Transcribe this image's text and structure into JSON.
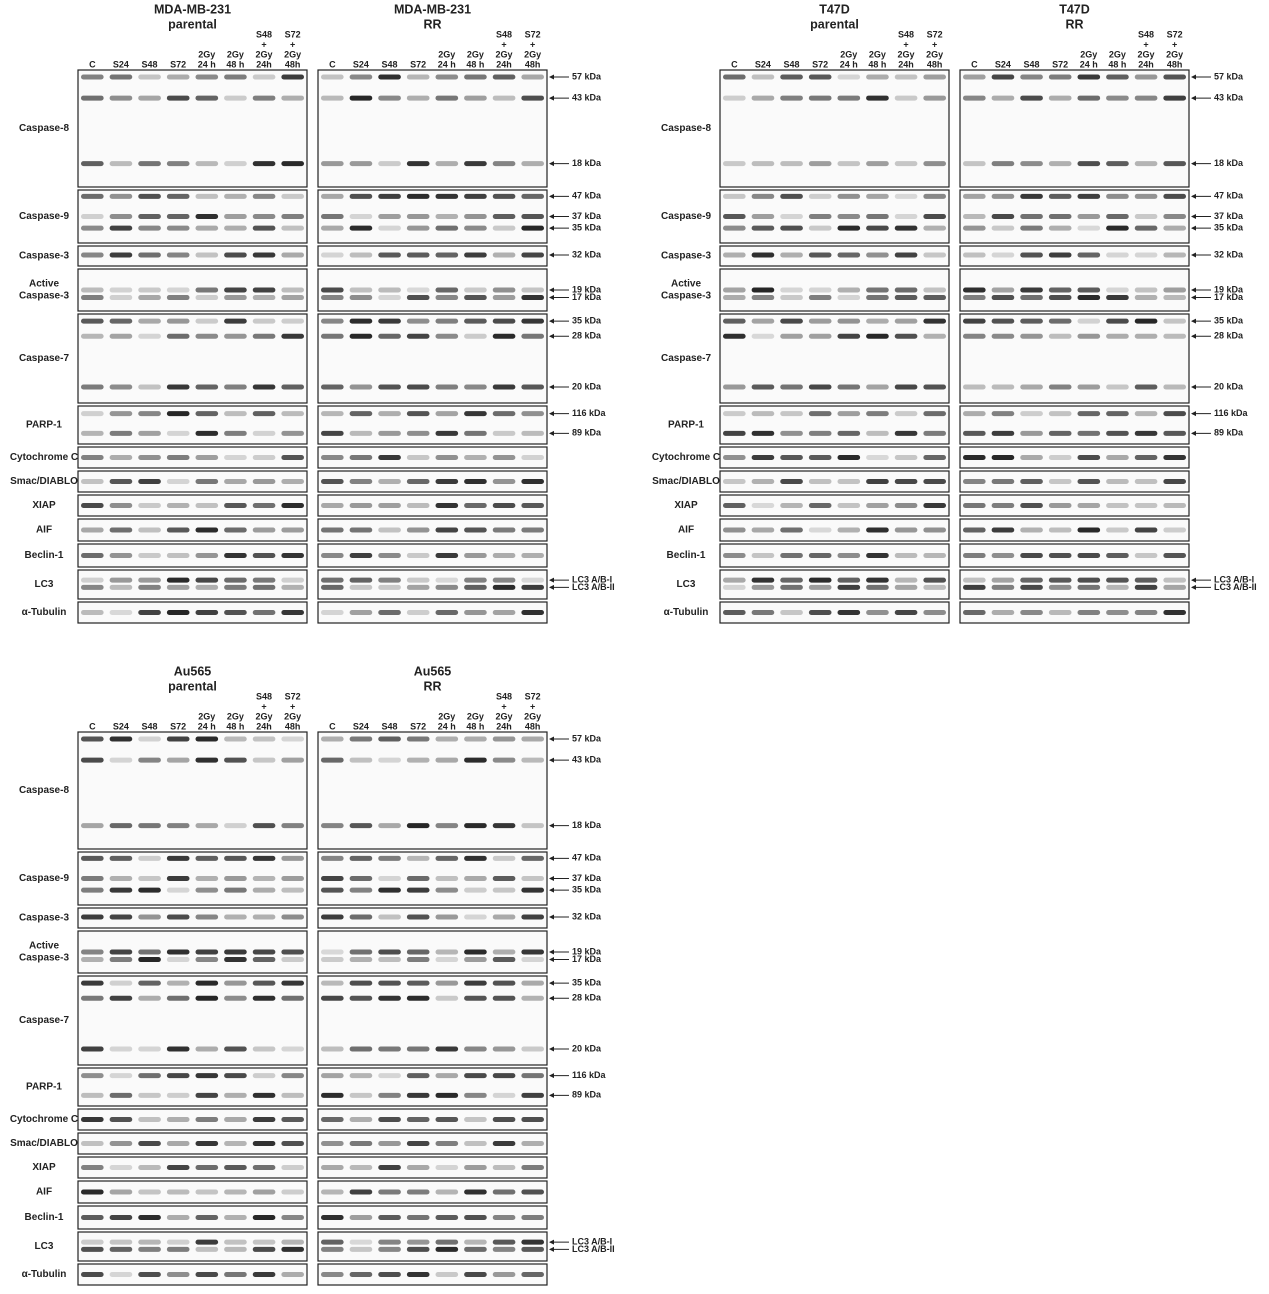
{
  "blocks": [
    {
      "panels": [
        {
          "title": [
            "MDA-MB-231",
            "parental"
          ],
          "lanes": [
            [
              "C"
            ],
            [
              "S24"
            ],
            [
              "S48"
            ],
            [
              "S72"
            ],
            [
              "2Gy",
              "24 h"
            ],
            [
              "2Gy",
              "48 h"
            ],
            [
              "S48",
              "+",
              "2Gy",
              "24h"
            ],
            [
              "S72",
              "+",
              "2Gy",
              "48h"
            ]
          ]
        },
        {
          "title": [
            "MDA-MB-231",
            "RR"
          ],
          "lanes": [
            [
              "C"
            ],
            [
              "S24"
            ],
            [
              "S48"
            ],
            [
              "S72"
            ],
            [
              "2Gy",
              "24 h"
            ],
            [
              "2Gy",
              "48 h"
            ],
            [
              "S48",
              "+",
              "2Gy",
              "24h"
            ],
            [
              "S72",
              "+",
              "2Gy",
              "48h"
            ]
          ]
        }
      ],
      "rows": [
        {
          "label": [
            "Caspase-8"
          ],
          "markers": [
            "57 kDa",
            "43 kDa",
            "18 kDa"
          ]
        },
        {
          "label": [
            "Caspase-9"
          ],
          "markers": [
            "47 kDa",
            "37 kDa",
            "35 kDa"
          ]
        },
        {
          "label": [
            "Caspase-3"
          ],
          "markers": [
            "32 kDa"
          ]
        },
        {
          "label": [
            "Active",
            "Caspase-3"
          ],
          "markers": [
            "19 kDa",
            "17 kDa"
          ]
        },
        {
          "label": [
            "Caspase-7"
          ],
          "markers": [
            "35 kDa",
            "28 kDa",
            "20 kDa"
          ]
        },
        {
          "label": [
            "PARP-1"
          ],
          "markers": [
            "116 kDa",
            "89 kDa"
          ]
        },
        {
          "label": [
            "Cytochrome C"
          ],
          "markers": []
        },
        {
          "label": [
            "Smac/DIABLO"
          ],
          "markers": []
        },
        {
          "label": [
            "XIAP"
          ],
          "markers": []
        },
        {
          "label": [
            "AIF"
          ],
          "markers": []
        },
        {
          "label": [
            "Beclin-1"
          ],
          "markers": []
        },
        {
          "label": [
            "LC3"
          ],
          "markers": [
            "LC3 A/B-I",
            "LC3 A/B-II"
          ]
        },
        {
          "label": [
            "α-Tubulin"
          ],
          "markers": []
        }
      ]
    },
    {
      "panels": [
        {
          "title": [
            "T47D",
            "parental"
          ],
          "lanes": [
            [
              "C"
            ],
            [
              "S24"
            ],
            [
              "S48"
            ],
            [
              "S72"
            ],
            [
              "2Gy",
              "24 h"
            ],
            [
              "2Gy",
              "48 h"
            ],
            [
              "S48",
              "+",
              "2Gy",
              "24h"
            ],
            [
              "S72",
              "+",
              "2Gy",
              "48h"
            ]
          ]
        },
        {
          "title": [
            "T47D",
            "RR"
          ],
          "lanes": [
            [
              "C"
            ],
            [
              "S24"
            ],
            [
              "S48"
            ],
            [
              "S72"
            ],
            [
              "2Gy",
              "24 h"
            ],
            [
              "2Gy",
              "48 h"
            ],
            [
              "S48",
              "+",
              "2Gy",
              "24h"
            ],
            [
              "S72",
              "+",
              "2Gy",
              "48h"
            ]
          ]
        }
      ],
      "rows": [
        {
          "label": [
            "Caspase-8"
          ],
          "markers": [
            "57 kDa",
            "43 kDa",
            "18 kDa"
          ]
        },
        {
          "label": [
            "Caspase-9"
          ],
          "markers": [
            "47 kDa",
            "37 kDa",
            "35 kDa"
          ]
        },
        {
          "label": [
            "Caspase-3"
          ],
          "markers": [
            "32 kDa"
          ]
        },
        {
          "label": [
            "Active",
            "Caspase-3"
          ],
          "markers": [
            "19 kDa",
            "17 kDa"
          ]
        },
        {
          "label": [
            "Caspase-7"
          ],
          "markers": [
            "35 kDa",
            "28 kDa",
            "20 kDa"
          ]
        },
        {
          "label": [
            "PARP-1"
          ],
          "markers": [
            "116 kDa",
            "89 kDa"
          ]
        },
        {
          "label": [
            "Cytochrome C"
          ],
          "markers": []
        },
        {
          "label": [
            "Smac/DIABLO"
          ],
          "markers": []
        },
        {
          "label": [
            "XIAP"
          ],
          "markers": []
        },
        {
          "label": [
            "AIF"
          ],
          "markers": []
        },
        {
          "label": [
            "Beclin-1"
          ],
          "markers": []
        },
        {
          "label": [
            "LC3"
          ],
          "markers": [
            "LC3 A/B-I",
            "LC3 A/B-II"
          ]
        },
        {
          "label": [
            "α-Tubulin"
          ],
          "markers": []
        }
      ]
    },
    {
      "panels": [
        {
          "title": [
            "Au565",
            "parental"
          ],
          "lanes": [
            [
              "C"
            ],
            [
              "S24"
            ],
            [
              "S48"
            ],
            [
              "S72"
            ],
            [
              "2Gy",
              "24 h"
            ],
            [
              "2Gy",
              "48 h"
            ],
            [
              "S48",
              "+",
              "2Gy",
              "24h"
            ],
            [
              "S72",
              "+",
              "2Gy",
              "48h"
            ]
          ]
        },
        {
          "title": [
            "Au565",
            "RR"
          ],
          "lanes": [
            [
              "C"
            ],
            [
              "S24"
            ],
            [
              "S48"
            ],
            [
              "S72"
            ],
            [
              "2Gy",
              "24 h"
            ],
            [
              "2Gy",
              "48 h"
            ],
            [
              "S48",
              "+",
              "2Gy",
              "24h"
            ],
            [
              "S72",
              "+",
              "2Gy",
              "48h"
            ]
          ]
        }
      ],
      "rows": [
        {
          "label": [
            "Caspase-8"
          ],
          "markers": [
            "57 kDa",
            "43 kDa",
            "18 kDa"
          ]
        },
        {
          "label": [
            "Caspase-9"
          ],
          "markers": [
            "47 kDa",
            "37 kDa",
            "35 kDa"
          ]
        },
        {
          "label": [
            "Caspase-3"
          ],
          "markers": [
            "32 kDa"
          ]
        },
        {
          "label": [
            "Active",
            "Caspase-3"
          ],
          "markers": [
            "19 kDa",
            "17 kDa"
          ]
        },
        {
          "label": [
            "Caspase-7"
          ],
          "markers": [
            "35 kDa",
            "28 kDa",
            "20 kDa"
          ]
        },
        {
          "label": [
            "PARP-1"
          ],
          "markers": [
            "116 kDa",
            "89 kDa"
          ]
        },
        {
          "label": [
            "Cytochrome C"
          ],
          "markers": []
        },
        {
          "label": [
            "Smac/DIABLO"
          ],
          "markers": []
        },
        {
          "label": [
            "XIAP"
          ],
          "markers": []
        },
        {
          "label": [
            "AIF"
          ],
          "markers": []
        },
        {
          "label": [
            "Beclin-1"
          ],
          "markers": []
        },
        {
          "label": [
            "LC3"
          ],
          "markers": [
            "LC3 A/B-I",
            "LC3 A/B-II"
          ]
        },
        {
          "label": [
            "α-Tubulin"
          ],
          "markers": []
        }
      ]
    }
  ]
}
